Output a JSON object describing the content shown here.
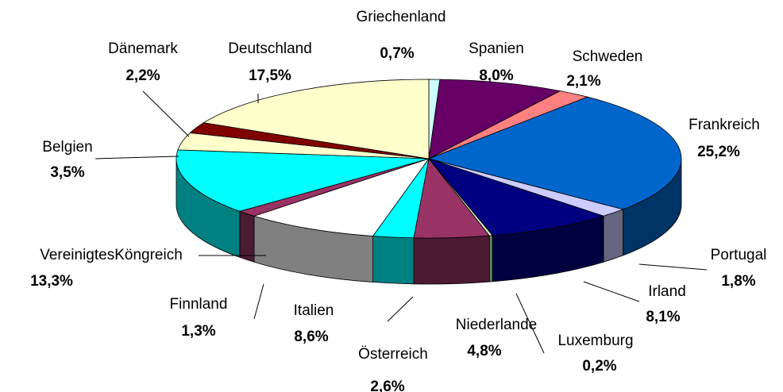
{
  "chart_data": {
    "type": "pie",
    "categories": [
      "Griechenland",
      "Spanien",
      "Schweden",
      "Frankreich",
      "Portugal",
      "Irland",
      "Luxemburg",
      "Niederlande",
      "Österreich",
      "Italien",
      "Finnland",
      "VereinigtesKöngreich",
      "Belgien",
      "Dänemark",
      "Deutschland"
    ],
    "values": [
      0.7,
      8.0,
      2.1,
      25.2,
      1.8,
      8.1,
      0.2,
      4.8,
      2.6,
      8.6,
      1.3,
      13.3,
      3.5,
      2.2,
      17.5
    ],
    "value_labels": [
      "0,7%",
      "8,0%",
      "2,1%",
      "25,2%",
      "1,8%",
      "8,1%",
      "0,2%",
      "4,8%",
      "2,6%",
      "8,6%",
      "1,3%",
      "13,3%",
      "3,5%",
      "2,2%",
      "17,5%"
    ],
    "colors": [
      "#ccffff",
      "#660066",
      "#ff8080",
      "#0066cc",
      "#ccccff",
      "#000080",
      "#ccffcc",
      "#993366",
      "#00ffff",
      "#ffffff",
      "#993366",
      "#00ffff",
      "#ffffcc",
      "#800000",
      "#ffffcc"
    ]
  }
}
